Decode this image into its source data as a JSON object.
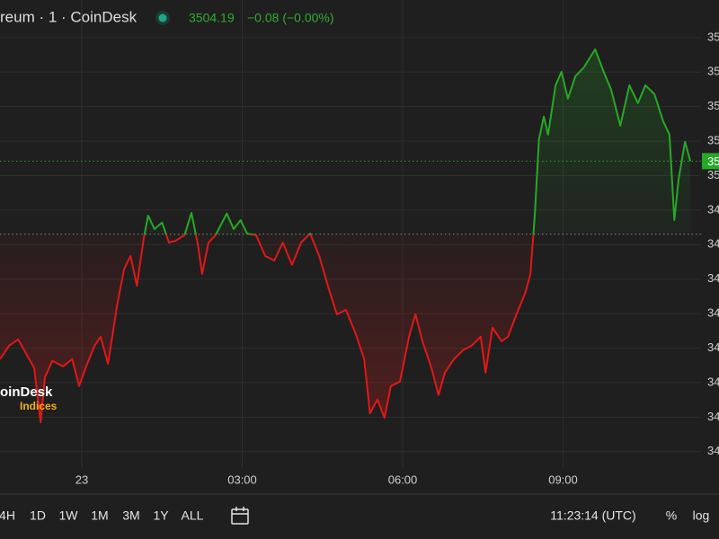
{
  "header": {
    "symbol": "reum · 1 · CoinDesk",
    "price": "3504.19",
    "change": "−0.08 (−0.00%)"
  },
  "watermark": {
    "name": "oinDesk",
    "sub": "Indices"
  },
  "chart_data": {
    "type": "line",
    "x": [
      -1.53,
      -1.36,
      -1.19,
      -1.06,
      -0.89,
      -0.77,
      -0.69,
      -0.55,
      -0.35,
      -0.18,
      -0.05,
      0.07,
      0.24,
      0.35,
      0.49,
      0.66,
      0.79,
      0.91,
      1.03,
      1.16,
      1.24,
      1.36,
      1.5,
      1.63,
      1.75,
      1.92,
      2.05,
      2.17,
      2.25,
      2.37,
      2.5,
      2.71,
      2.84,
      2.97,
      3.09,
      3.26,
      3.43,
      3.6,
      3.76,
      3.93,
      4.1,
      4.27,
      4.44,
      4.61,
      4.77,
      4.94,
      5.11,
      5.28,
      5.39,
      5.53,
      5.66,
      5.78,
      5.95,
      6.12,
      6.24,
      6.37,
      6.54,
      6.67,
      6.79,
      6.96,
      7.13,
      7.29,
      7.46,
      7.55,
      7.68,
      7.85,
      7.97,
      8.13,
      8.3,
      8.39,
      8.47,
      8.55,
      8.64,
      8.72,
      8.86,
      8.97,
      9.09,
      9.23,
      9.39,
      9.6,
      9.76,
      9.9,
      10.07,
      10.24,
      10.4,
      10.54,
      10.71,
      10.87,
      10.99,
      11.08,
      11.16,
      11.28,
      11.38
    ],
    "series": [
      {
        "values": [
          3446.8,
          3450.7,
          3452.5,
          3448.9,
          3444.2,
          3428.5,
          3441.6,
          3446.3,
          3444.7,
          3446.8,
          3439.0,
          3444.2,
          3450.7,
          3453.3,
          3445.5,
          3462.4,
          3472.8,
          3476.7,
          3468.1,
          3481.9,
          3488.4,
          3484.5,
          3486.4,
          3480.6,
          3481.1,
          3482.7,
          3489.2,
          3480.1,
          3471.5,
          3480.6,
          3482.7,
          3489.0,
          3484.5,
          3487.1,
          3483.2,
          3482.7,
          3476.7,
          3475.4,
          3480.6,
          3474.1,
          3480.6,
          3483.2,
          3476.7,
          3467.6,
          3459.8,
          3461.1,
          3454.6,
          3446.8,
          3431.1,
          3435.1,
          3429.8,
          3439.0,
          3440.3,
          3453.3,
          3459.8,
          3452.0,
          3444.2,
          3436.4,
          3442.9,
          3446.8,
          3449.4,
          3450.7,
          3453.3,
          3442.9,
          3455.9,
          3452.0,
          3453.3,
          3459.8,
          3466.3,
          3471.5,
          3488.4,
          3510.6,
          3517.1,
          3511.9,
          3526.2,
          3530.1,
          3522.3,
          3528.8,
          3531.4,
          3536.6,
          3530.1,
          3524.9,
          3514.5,
          3526.2,
          3521.0,
          3526.2,
          3523.6,
          3515.8,
          3511.9,
          3487.1,
          3498.9,
          3509.8,
          3504.19
        ],
        "color_up": "#27a827",
        "color_down": "#e01818"
      }
    ],
    "baseline": 3483.0,
    "price_label": "35",
    "xlim": [
      -1.53,
      11.58
    ],
    "ylim": [
      3415.5,
      3550.9
    ],
    "xticks": [
      {
        "value": 0,
        "label": "23"
      },
      {
        "value": 3,
        "label": "03:00"
      },
      {
        "value": 6,
        "label": "06:00"
      },
      {
        "value": 9,
        "label": "09:00"
      }
    ],
    "yticks": [
      {
        "value": 3540,
        "label": "35"
      },
      {
        "value": 3530,
        "label": "35"
      },
      {
        "value": 3520,
        "label": "35"
      },
      {
        "value": 3510,
        "label": "35"
      },
      {
        "value": 3500,
        "label": "35"
      },
      {
        "value": 3490,
        "label": "34"
      },
      {
        "value": 3480,
        "label": "34"
      },
      {
        "value": 3470,
        "label": "34"
      },
      {
        "value": 3460,
        "label": "34"
      },
      {
        "value": 3450,
        "label": "34"
      },
      {
        "value": 3440,
        "label": "34"
      },
      {
        "value": 3430,
        "label": "34"
      },
      {
        "value": 3420,
        "label": "34"
      }
    ],
    "grid": true
  },
  "toolbar": {
    "ranges": [
      "4H",
      "1D",
      "1W",
      "1M",
      "3M",
      "1Y",
      "ALL"
    ],
    "clock": "11:23:14 (UTC)",
    "percent": "%",
    "log": "log"
  }
}
